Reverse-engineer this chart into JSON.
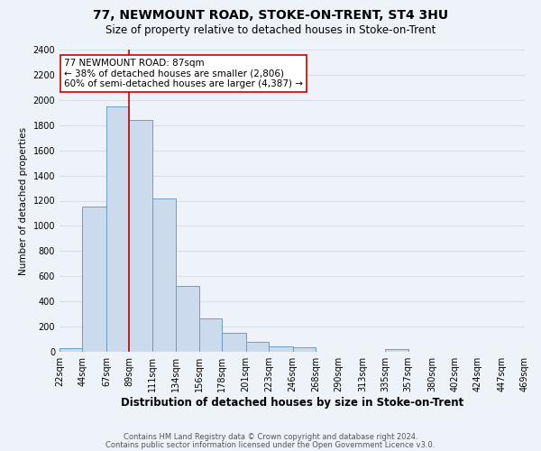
{
  "title": "77, NEWMOUNT ROAD, STOKE-ON-TRENT, ST4 3HU",
  "subtitle": "Size of property relative to detached houses in Stoke-on-Trent",
  "xlabel": "Distribution of detached houses by size in Stoke-on-Trent",
  "ylabel": "Number of detached properties",
  "bin_edges": [
    22,
    44,
    67,
    89,
    111,
    134,
    156,
    178,
    201,
    223,
    246,
    268,
    290,
    313,
    335,
    357,
    380,
    402,
    424,
    447,
    469
  ],
  "bin_labels": [
    "22sqm",
    "44sqm",
    "67sqm",
    "89sqm",
    "111sqm",
    "134sqm",
    "156sqm",
    "178sqm",
    "201sqm",
    "223sqm",
    "246sqm",
    "268sqm",
    "290sqm",
    "313sqm",
    "335sqm",
    "357sqm",
    "380sqm",
    "402sqm",
    "424sqm",
    "447sqm",
    "469sqm"
  ],
  "bar_heights": [
    30,
    1150,
    1950,
    1840,
    1220,
    520,
    265,
    150,
    80,
    45,
    35,
    0,
    0,
    0,
    20,
    0,
    0,
    0,
    0,
    0
  ],
  "bar_color": "#ccdaed",
  "bar_edge_color": "#6a9ec5",
  "vline_x": 89,
  "vline_color": "#cc0000",
  "ylim": [
    0,
    2400
  ],
  "yticks": [
    0,
    200,
    400,
    600,
    800,
    1000,
    1200,
    1400,
    1600,
    1800,
    2000,
    2200,
    2400
  ],
  "annotation_title": "77 NEWMOUNT ROAD: 87sqm",
  "annotation_line1": "← 38% of detached houses are smaller (2,806)",
  "annotation_line2": "60% of semi-detached houses are larger (4,387) →",
  "annotation_box_facecolor": "#ffffff",
  "annotation_box_edgecolor": "#cc0000",
  "footer1": "Contains HM Land Registry data © Crown copyright and database right 2024.",
  "footer2": "Contains public sector information licensed under the Open Government Licence v3.0.",
  "fig_facecolor": "#eef2f9",
  "plot_facecolor": "#eef2f9",
  "grid_color": "#d8dfe8",
  "title_fontsize": 10,
  "subtitle_fontsize": 8.5,
  "xlabel_fontsize": 8.5,
  "ylabel_fontsize": 7.5,
  "tick_fontsize": 7,
  "annot_fontsize": 7.5,
  "footer_fontsize": 6
}
